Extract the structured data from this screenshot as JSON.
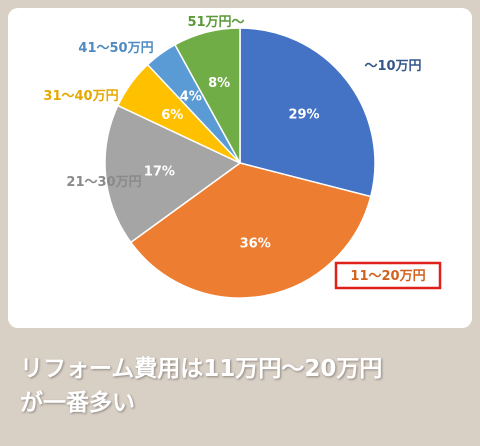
{
  "chart_data": {
    "type": "pie",
    "categories": [
      "〜10万円",
      "11〜20万円",
      "21〜30万円",
      "31〜40万円",
      "41〜50万円",
      "51万円〜"
    ],
    "values": [
      29,
      36,
      17,
      6,
      4,
      8
    ],
    "value_labels": [
      "29%",
      "36%",
      "17%",
      "6%",
      "4%",
      "8%"
    ],
    "colors": [
      "#4472c4",
      "#ed7d31",
      "#a5a5a5",
      "#ffc000",
      "#5b9bd5",
      "#70ad47"
    ],
    "label_colors": [
      "#35578a",
      "#d2611f",
      "#8a8a8a",
      "#e6a800",
      "#4f8bc0",
      "#5a9a3a"
    ],
    "highlighted_category": "11〜20万円",
    "highlight_color": "#e0201a",
    "legend": "none"
  },
  "caption": {
    "line1": "リフォーム費用は11万円〜20万円",
    "line2": "が一番多い"
  }
}
